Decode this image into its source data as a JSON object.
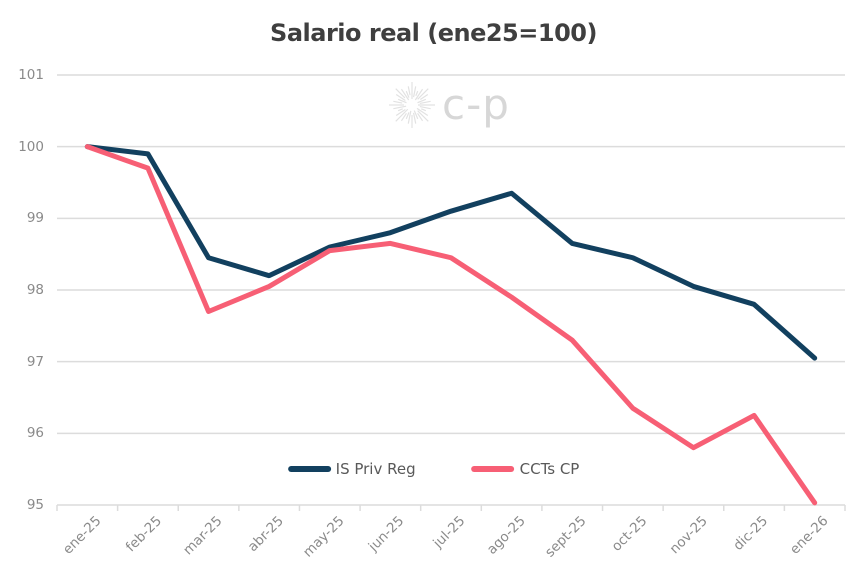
{
  "watermark": {
    "icon": "sunburst-icon",
    "text": "c-p"
  },
  "colors": {
    "background": "#ffffff",
    "grid": "#dcdcdc",
    "axis_text": "#8a8a8a",
    "title_text": "#3f3f3f",
    "legend_text": "#595959",
    "watermark": "#d9d9d9",
    "series_navy": "#12405f",
    "series_pink": "#f75f75"
  },
  "legend": {
    "items": [
      {
        "label": "IS Priv Reg",
        "color": "#12405f"
      },
      {
        "label": "CCTs CP",
        "color": "#f75f75"
      }
    ],
    "position": "bottom-center-inside"
  },
  "chart_data": {
    "type": "line",
    "title": "Salario real (ene25=100)",
    "xlabel": "",
    "ylabel": "",
    "ylim": [
      95,
      101
    ],
    "yticks": [
      101,
      100,
      99,
      98,
      97,
      96,
      95
    ],
    "grid": true,
    "legend_position": "bottom-center-inside",
    "categories": [
      "ene-25",
      "feb-25",
      "mar-25",
      "abr-25",
      "may-25",
      "jun-25",
      "jul-25",
      "ago-25",
      "sept-25",
      "oct-25",
      "nov-25",
      "dic-25",
      "ene-26"
    ],
    "series": [
      {
        "name": "IS Priv Reg",
        "color": "#12405f",
        "values": [
          100,
          99.9,
          98.45,
          98.2,
          98.6,
          98.8,
          99.1,
          99.35,
          98.65,
          98.45,
          98.05,
          97.8,
          97.05
        ]
      },
      {
        "name": "CCTs CP",
        "color": "#f75f75",
        "values": [
          100,
          99.7,
          97.7,
          98.05,
          98.55,
          98.65,
          98.45,
          97.9,
          97.3,
          96.35,
          95.8,
          96.25,
          95.03
        ]
      }
    ]
  }
}
